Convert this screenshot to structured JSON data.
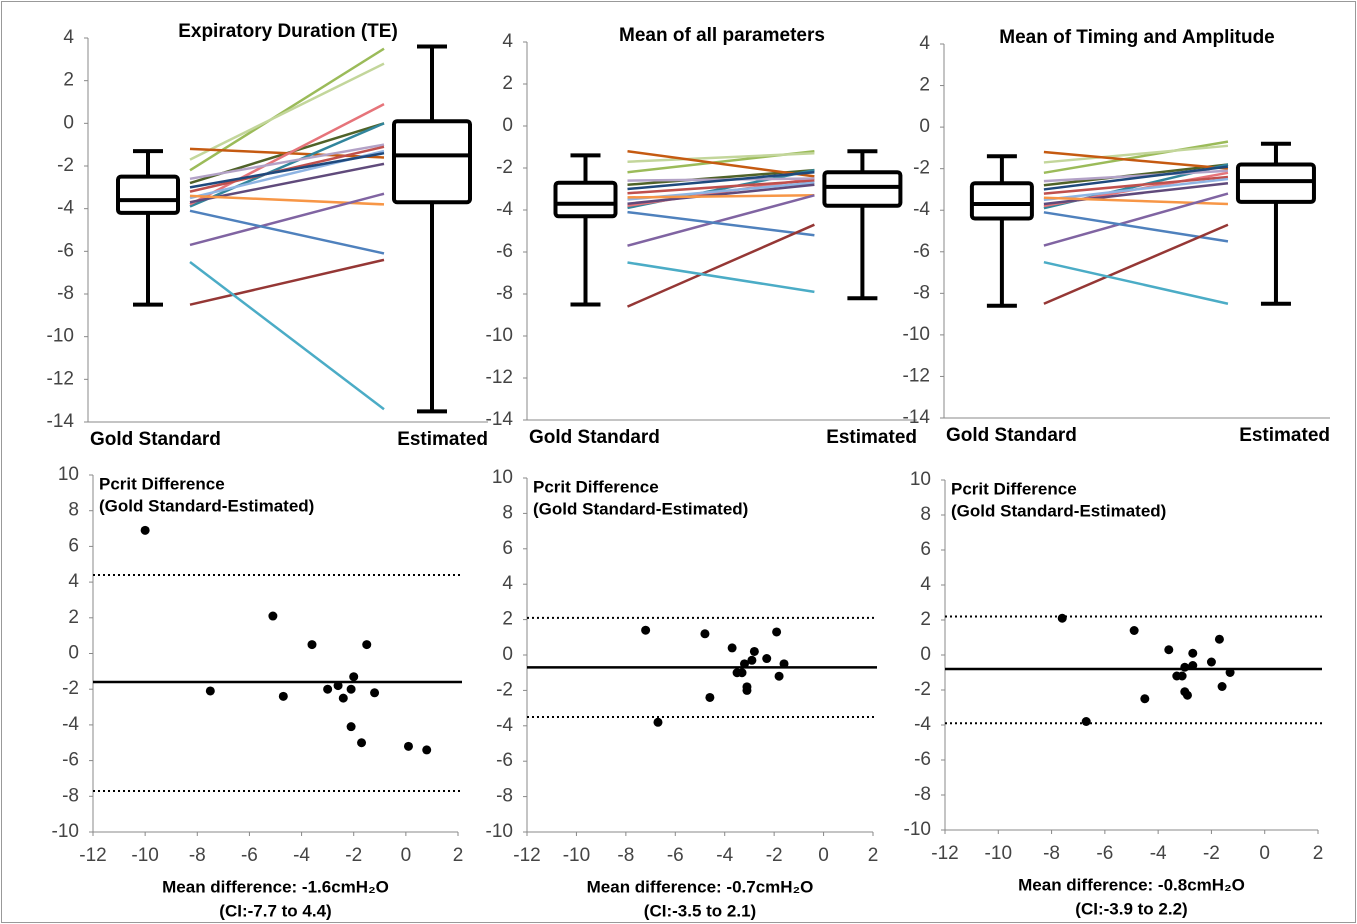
{
  "chart_data": [
    {
      "type": "box",
      "title": "Expiratory Duration (TE)",
      "categories": [
        "Gold Standard",
        "Estimated"
      ],
      "ylim": [
        -14,
        4
      ],
      "yticks": [
        -14,
        -12,
        -10,
        -8,
        -6,
        -4,
        -2,
        0,
        2,
        4
      ],
      "boxes": [
        {
          "min": -8.5,
          "q1": -4.2,
          "median": -3.6,
          "q3": -2.5,
          "max": -1.3
        },
        {
          "min": -13.5,
          "q1": -3.7,
          "median": -1.5,
          "q3": 0.1,
          "max": 3.6
        }
      ],
      "series": [
        {
          "color": "#9bbb59",
          "values": [
            -2.2,
            3.5
          ]
        },
        {
          "color": "#c3d69b",
          "values": [
            -1.7,
            2.8
          ]
        },
        {
          "color": "#4f6228",
          "values": [
            -2.8,
            0
          ]
        },
        {
          "color": "#c55a11",
          "values": [
            -1.2,
            -1.6
          ]
        },
        {
          "color": "#31859c",
          "values": [
            -3.9,
            0
          ]
        },
        {
          "color": "#e6747a",
          "values": [
            -3.8,
            0.9
          ]
        },
        {
          "color": "#b3a2c7",
          "values": [
            -2.6,
            -1.0
          ]
        },
        {
          "color": "#c0504d",
          "values": [
            -3.2,
            -1.1
          ]
        },
        {
          "color": "#8eb4e3",
          "values": [
            -3.5,
            -1.3
          ]
        },
        {
          "color": "#604a7b",
          "values": [
            -3.7,
            -1.9
          ]
        },
        {
          "color": "#1f497d",
          "values": [
            -3.0,
            -1.4
          ]
        },
        {
          "color": "#f79646",
          "values": [
            -3.4,
            -3.8
          ]
        },
        {
          "color": "#8064a2",
          "values": [
            -5.7,
            -3.3
          ]
        },
        {
          "color": "#4f81bd",
          "values": [
            -4.1,
            -6.1
          ]
        },
        {
          "color": "#953735",
          "values": [
            -8.5,
            -6.4
          ]
        },
        {
          "color": "#4bacc6",
          "values": [
            -6.5,
            -13.4
          ]
        }
      ]
    },
    {
      "type": "box",
      "title": "Mean of all parameters",
      "categories": [
        "Gold Standard",
        "Estimated"
      ],
      "ylim": [
        -14,
        4
      ],
      "yticks": [
        -14,
        -12,
        -10,
        -8,
        -6,
        -4,
        -2,
        0,
        2,
        4
      ],
      "boxes": [
        {
          "min": -8.5,
          "q1": -4.3,
          "median": -3.7,
          "q3": -2.7,
          "max": -1.4
        },
        {
          "min": -8.2,
          "q1": -3.8,
          "median": -2.9,
          "q3": -2.2,
          "max": -1.2
        }
      ],
      "series": [
        {
          "color": "#9bbb59",
          "values": [
            -2.2,
            -1.2
          ]
        },
        {
          "color": "#c3d69b",
          "values": [
            -1.7,
            -1.3
          ]
        },
        {
          "color": "#4f6228",
          "values": [
            -2.8,
            -2.1
          ]
        },
        {
          "color": "#c55a11",
          "values": [
            -1.2,
            -2.4
          ]
        },
        {
          "color": "#31859c",
          "values": [
            -3.9,
            -2.1
          ]
        },
        {
          "color": "#e6747a",
          "values": [
            -3.8,
            -2.5
          ]
        },
        {
          "color": "#b3a2c7",
          "values": [
            -2.6,
            -2.5
          ]
        },
        {
          "color": "#c0504d",
          "values": [
            -3.2,
            -2.6
          ]
        },
        {
          "color": "#8eb4e3",
          "values": [
            -3.5,
            -2.7
          ]
        },
        {
          "color": "#604a7b",
          "values": [
            -3.7,
            -2.8
          ]
        },
        {
          "color": "#1f497d",
          "values": [
            -3.0,
            -2.2
          ]
        },
        {
          "color": "#f79646",
          "values": [
            -3.4,
            -3.3
          ]
        },
        {
          "color": "#8064a2",
          "values": [
            -5.7,
            -3.3
          ]
        },
        {
          "color": "#4f81bd",
          "values": [
            -4.1,
            -5.2
          ]
        },
        {
          "color": "#953735",
          "values": [
            -8.6,
            -4.7
          ]
        },
        {
          "color": "#4bacc6",
          "values": [
            -6.5,
            -7.9
          ]
        }
      ]
    },
    {
      "type": "box",
      "title": "Mean of Timing and Amplitude",
      "categories": [
        "Gold  Standard",
        "Estimated"
      ],
      "ylim": [
        -14,
        4
      ],
      "yticks": [
        -14,
        -12,
        -10,
        -8,
        -6,
        -4,
        -2,
        0,
        2,
        4
      ],
      "boxes": [
        {
          "min": -8.6,
          "q1": -4.4,
          "median": -3.7,
          "q3": -2.7,
          "max": -1.4
        },
        {
          "min": -8.5,
          "q1": -3.6,
          "median": -2.6,
          "q3": -1.8,
          "max": -0.8
        }
      ],
      "series": [
        {
          "color": "#9bbb59",
          "values": [
            -2.2,
            -0.7
          ]
        },
        {
          "color": "#c3d69b",
          "values": [
            -1.7,
            -0.9
          ]
        },
        {
          "color": "#4f6228",
          "values": [
            -2.8,
            -1.8
          ]
        },
        {
          "color": "#c55a11",
          "values": [
            -1.2,
            -2.0
          ]
        },
        {
          "color": "#31859c",
          "values": [
            -3.9,
            -1.8
          ]
        },
        {
          "color": "#e6747a",
          "values": [
            -3.8,
            -2.2
          ]
        },
        {
          "color": "#b3a2c7",
          "values": [
            -2.6,
            -2.1
          ]
        },
        {
          "color": "#c0504d",
          "values": [
            -3.2,
            -2.4
          ]
        },
        {
          "color": "#8eb4e3",
          "values": [
            -3.5,
            -2.5
          ]
        },
        {
          "color": "#604a7b",
          "values": [
            -3.7,
            -2.7
          ]
        },
        {
          "color": "#1f497d",
          "values": [
            -3.0,
            -1.9
          ]
        },
        {
          "color": "#f79646",
          "values": [
            -3.4,
            -3.7
          ]
        },
        {
          "color": "#8064a2",
          "values": [
            -5.7,
            -3.2
          ]
        },
        {
          "color": "#4f81bd",
          "values": [
            -4.1,
            -5.5
          ]
        },
        {
          "color": "#953735",
          "values": [
            -8.5,
            -4.7
          ]
        },
        {
          "color": "#4bacc6",
          "values": [
            -6.5,
            -8.5
          ]
        }
      ]
    },
    {
      "type": "scatter",
      "title": [
        "Pcrit Difference",
        "(Gold Standard-Estimated)"
      ],
      "xlabel": [
        "Mean difference: -1.6cmH₂O",
        "(CI:-7.7 to 4.4)"
      ],
      "xlim": [
        -12,
        2
      ],
      "xticks": [
        -12,
        -10,
        -8,
        -6,
        -4,
        -2,
        0,
        2
      ],
      "ylim": [
        -10,
        10
      ],
      "yticks": [
        -10,
        -8,
        -6,
        -4,
        -2,
        0,
        2,
        4,
        6,
        8,
        10
      ],
      "mean": -1.6,
      "limits": [
        -7.7,
        4.4
      ],
      "color": "#000000",
      "x": [
        -10,
        -7.5,
        -5.1,
        -4.7,
        -3.6,
        -3.0,
        -2.6,
        -2.4,
        -2.1,
        -2.0,
        -2.1,
        -1.7,
        -1.5,
        -1.2,
        0.1,
        0.8
      ],
      "y": [
        6.9,
        -2.1,
        2.1,
        -2.4,
        0.5,
        -2.0,
        -1.8,
        -2.5,
        -2.0,
        -1.3,
        -4.1,
        -5.0,
        0.5,
        -2.2,
        -5.2,
        -5.4
      ]
    },
    {
      "type": "scatter",
      "title": [
        "Pcrit Difference",
        "(Gold Standard-Estimated)"
      ],
      "xlabel": [
        "Mean difference: -0.7cmH₂O",
        "(CI:-3.5 to 2.1)"
      ],
      "xlim": [
        -12,
        2
      ],
      "xticks": [
        -12,
        -10,
        -8,
        -6,
        -4,
        -2,
        0,
        2
      ],
      "ylim": [
        -10,
        10
      ],
      "yticks": [
        -10,
        -8,
        -6,
        -4,
        -2,
        0,
        2,
        4,
        6,
        8,
        10
      ],
      "mean": -0.7,
      "limits": [
        -3.5,
        2.1
      ],
      "color": "#000000",
      "x": [
        -7.2,
        -6.7,
        -4.8,
        -4.6,
        -3.7,
        -3.5,
        -3.3,
        -3.2,
        -3.1,
        -3.1,
        -2.9,
        -2.8,
        -2.3,
        -1.9,
        -1.8,
        -1.6
      ],
      "y": [
        1.4,
        -3.8,
        1.2,
        -2.4,
        0.4,
        -1.0,
        -1.0,
        -0.5,
        -1.8,
        -2.0,
        -0.3,
        0.2,
        -0.2,
        1.3,
        -1.2,
        -0.5
      ]
    },
    {
      "type": "scatter",
      "title": [
        "Pcrit Difference",
        "(Gold Standard-Estimated)"
      ],
      "xlabel": [
        "Mean difference: -0.8cmH₂O",
        "(CI:-3.9 to 2.2)"
      ],
      "xlim": [
        -12,
        2
      ],
      "xticks": [
        -12,
        -10,
        -8,
        -6,
        -4,
        -2,
        0,
        2
      ],
      "ylim": [
        -10,
        10
      ],
      "yticks": [
        -10,
        -8,
        -6,
        -4,
        -2,
        0,
        2,
        4,
        6,
        8,
        10
      ],
      "mean": -0.8,
      "limits": [
        -3.9,
        2.2
      ],
      "color": "#000000",
      "x": [
        -7.6,
        -6.7,
        -4.9,
        -4.5,
        -3.6,
        -3.3,
        -3.1,
        -3.0,
        -3.0,
        -2.9,
        -2.7,
        -2.7,
        -2.0,
        -1.7,
        -1.6,
        -1.3
      ],
      "y": [
        2.1,
        -3.8,
        1.4,
        -2.5,
        0.3,
        -1.2,
        -1.2,
        -0.7,
        -2.1,
        -2.3,
        -0.6,
        0.1,
        -0.4,
        0.9,
        -1.8,
        -1.0
      ]
    }
  ]
}
